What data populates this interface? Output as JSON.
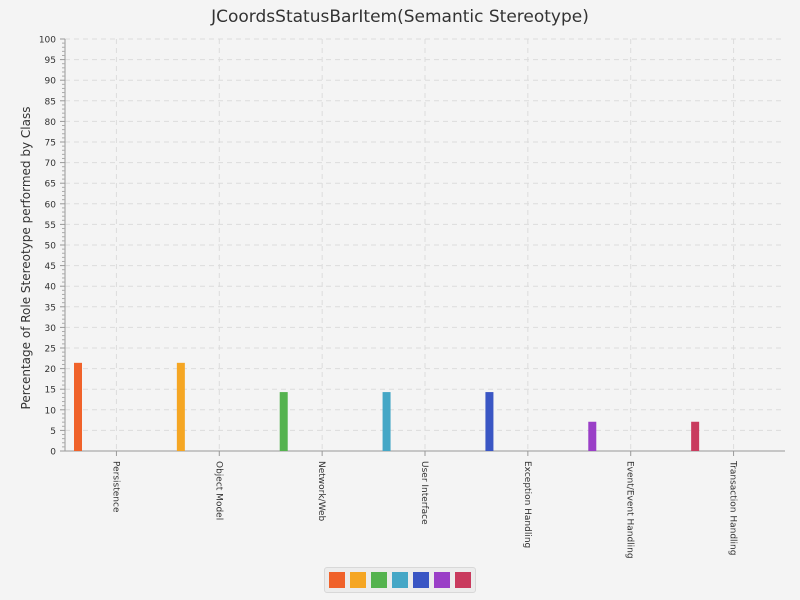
{
  "chart_data": {
    "type": "bar",
    "title": "JCoordsStatusBarItem(Semantic Stereotype)",
    "xlabel": "",
    "ylabel": "Percentage of Role Stereotype performed by Class",
    "ylim": [
      0,
      100
    ],
    "ytick_step": 5,
    "grid": true,
    "categories": [
      "Persistence",
      "Object Model",
      "Network/Web",
      "User Interface",
      "Exception Handling",
      "Event/Event Handling",
      "Transaction Handling"
    ],
    "values": [
      21.4,
      21.4,
      14.3,
      14.3,
      14.3,
      7.1,
      7.1
    ],
    "colors": [
      "#f0622a",
      "#f5a623",
      "#55b34f",
      "#45a7c6",
      "#3a56c4",
      "#9a3fc7",
      "#c93b5e"
    ],
    "legend_position": "bottom-center"
  }
}
